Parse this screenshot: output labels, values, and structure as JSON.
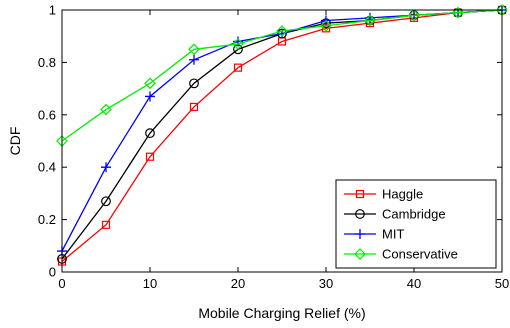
{
  "chart_data": {
    "type": "line",
    "xlabel": "Mobile Charging Relief (%)",
    "ylabel": "CDF",
    "xlim": [
      0,
      50
    ],
    "ylim": [
      0,
      1
    ],
    "xticks": [
      0,
      10,
      20,
      30,
      40,
      50
    ],
    "xtick_labels": [
      "0",
      "10",
      "20",
      "30",
      "40",
      "50"
    ],
    "yticks": [
      0,
      0.2,
      0.4,
      0.6,
      0.8,
      1
    ],
    "ytick_labels": [
      "0",
      "0.2",
      "0.4",
      "0.6",
      "0.8",
      "1"
    ],
    "grid": false,
    "legend_position": "bottom-right",
    "x": [
      0,
      5,
      10,
      15,
      20,
      25,
      30,
      35,
      40,
      45,
      50
    ],
    "series": [
      {
        "name": "Haggle",
        "color": "#ff0000",
        "marker": "square",
        "values": [
          0.04,
          0.18,
          0.44,
          0.63,
          0.78,
          0.88,
          0.93,
          0.95,
          0.97,
          0.99,
          1.0
        ]
      },
      {
        "name": "Cambridge",
        "color": "#000000",
        "marker": "circle",
        "values": [
          0.05,
          0.27,
          0.53,
          0.72,
          0.85,
          0.91,
          0.95,
          0.96,
          0.98,
          0.99,
          1.0
        ]
      },
      {
        "name": "MIT",
        "color": "#0000ff",
        "marker": "plus",
        "values": [
          0.08,
          0.4,
          0.67,
          0.81,
          0.88,
          0.91,
          0.96,
          0.97,
          0.98,
          0.99,
          1.0
        ]
      },
      {
        "name": "Conservative",
        "color": "#00ee00",
        "marker": "diamond",
        "values": [
          0.5,
          0.62,
          0.72,
          0.85,
          0.87,
          0.92,
          0.94,
          0.96,
          0.98,
          0.99,
          1.0
        ]
      }
    ]
  }
}
